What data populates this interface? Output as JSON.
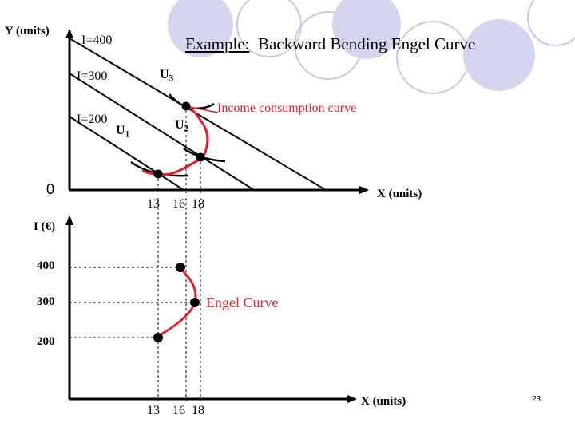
{
  "title": {
    "prefix": "Example:",
    "rest": "Backward Bending Engel Curve"
  },
  "top_panel": {
    "y_axis_label": "Y (units)",
    "x_axis_label": "X (units)",
    "origin_label": "0",
    "budget_labels": [
      "I=400",
      "I=300",
      "I=200"
    ],
    "indifference_labels": [
      {
        "base": "U",
        "sub": "1"
      },
      {
        "base": "U",
        "sub": "2"
      },
      {
        "base": "U",
        "sub": "3"
      }
    ],
    "curve_label": "Income consumption curve",
    "x_ticks": [
      "13",
      "16",
      "18"
    ]
  },
  "bottom_panel": {
    "y_axis_label": "I (€)",
    "x_axis_label": "X (units)",
    "y_ticks": [
      "400",
      "300",
      "200"
    ],
    "curve_label": "Engel Curve",
    "x_ticks": [
      "13",
      "16",
      "18"
    ]
  },
  "slide_number": "23",
  "colors": {
    "curve": "#e0202a",
    "decor_fill": "#d4d4ee",
    "decor_stroke": "#c8c8e6"
  },
  "chart_data": {
    "type": "scatter",
    "xlabel": "X (units)",
    "ylabel": "I (€)",
    "series": [
      {
        "x": [
          13,
          18,
          16
        ],
        "y": [
          200,
          300,
          400
        ]
      }
    ]
  }
}
